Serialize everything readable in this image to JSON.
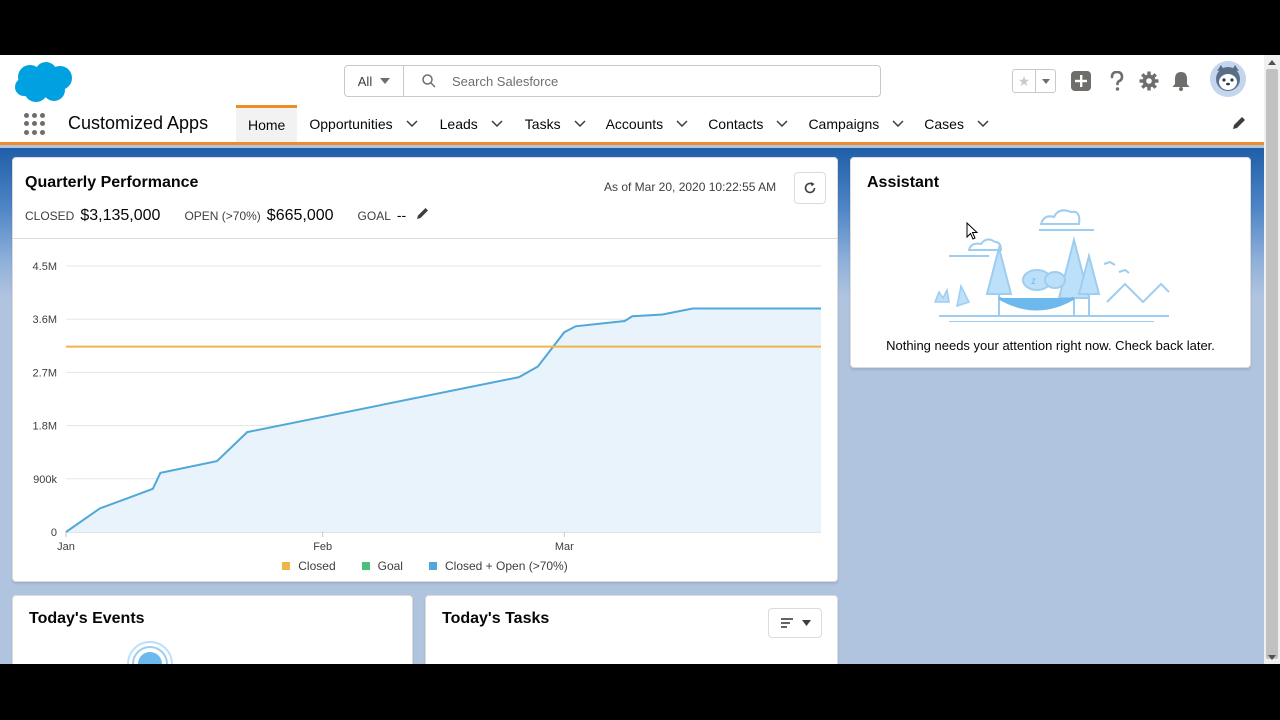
{
  "header": {
    "search_scope": "All",
    "search_placeholder": "Search Salesforce"
  },
  "nav": {
    "app_name": "Customized Apps",
    "items": [
      {
        "label": "Home",
        "active": true
      },
      {
        "label": "Opportunities"
      },
      {
        "label": "Leads"
      },
      {
        "label": "Tasks"
      },
      {
        "label": "Accounts"
      },
      {
        "label": "Contacts"
      },
      {
        "label": "Campaigns"
      },
      {
        "label": "Cases"
      }
    ]
  },
  "performance": {
    "title": "Quarterly Performance",
    "as_of": "As of Mar 20, 2020 10:22:55 AM",
    "closed_label": "CLOSED",
    "closed_value": "$3,135,000",
    "open_label": "OPEN (>70%)",
    "open_value": "$665,000",
    "goal_label": "GOAL",
    "goal_value": "--"
  },
  "chart_data": {
    "type": "line",
    "x_tick_labels": [
      "Jan",
      "Feb",
      "Mar"
    ],
    "y_tick_labels": [
      "0",
      "900k",
      "1.8M",
      "2.7M",
      "3.6M",
      "4.5M"
    ],
    "ylim": [
      0,
      4500000
    ],
    "grid": true,
    "legend_placement": "bottom-center",
    "series": [
      {
        "name": "Closed",
        "color": "#f0b54a",
        "values": []
      },
      {
        "name": "Goal",
        "color": "#4bc076",
        "values": []
      },
      {
        "name": "Closed + Open (>70%)",
        "color": "#4fa8d8",
        "points": [
          [
            0,
            0
          ],
          [
            0.045,
            400000
          ],
          [
            0.115,
            730000
          ],
          [
            0.125,
            1000000
          ],
          [
            0.2,
            1200000
          ],
          [
            0.24,
            1690000
          ],
          [
            0.6,
            2620000
          ],
          [
            0.625,
            2800000
          ],
          [
            0.66,
            3380000
          ],
          [
            0.675,
            3480000
          ],
          [
            0.74,
            3570000
          ],
          [
            0.75,
            3650000
          ],
          [
            0.79,
            3680000
          ],
          [
            0.83,
            3780000
          ],
          [
            1.0,
            3780000
          ]
        ]
      }
    ],
    "reference_line": {
      "value": 3135000,
      "color": "#f0b54a"
    },
    "x_domain": [
      0,
      1
    ]
  },
  "assistant": {
    "title": "Assistant",
    "message": "Nothing needs your attention right now. Check back later."
  },
  "events": {
    "title": "Today's Events"
  },
  "tasks": {
    "title": "Today's Tasks"
  }
}
